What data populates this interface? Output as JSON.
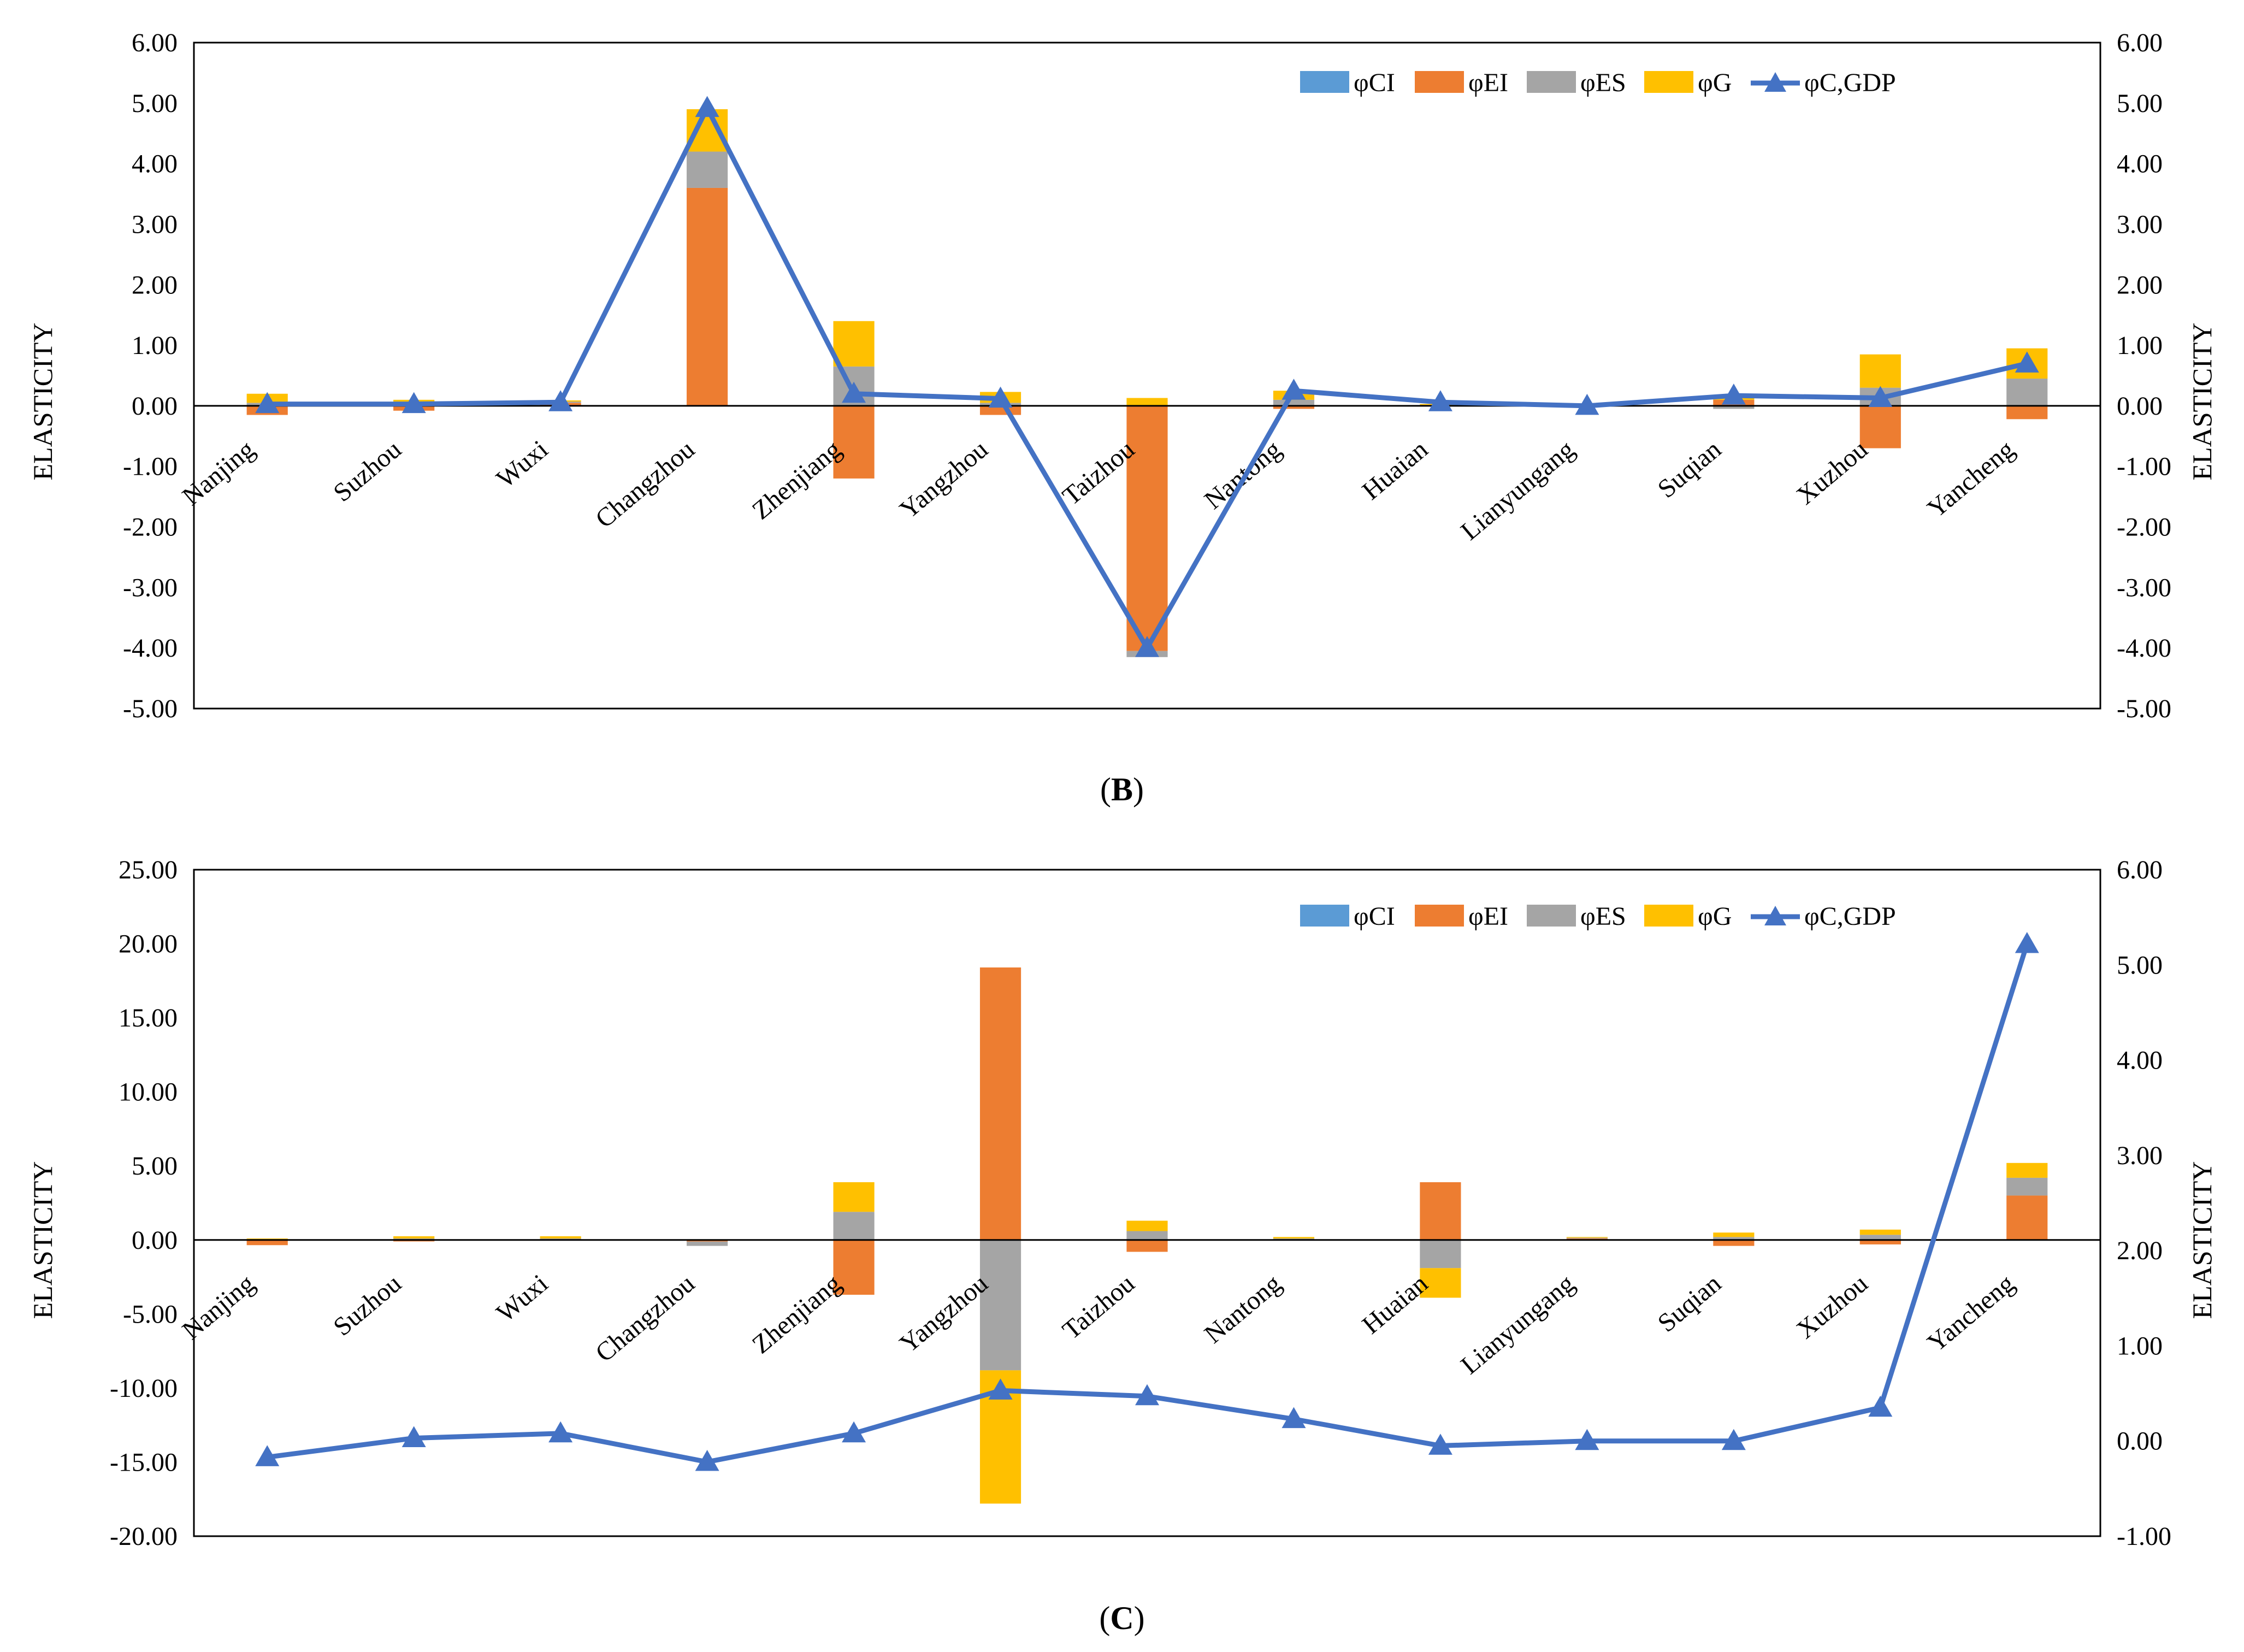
{
  "legend_labels": {
    "ci": "φCI",
    "ei": "φEI",
    "es": "φES",
    "g": "φG",
    "line": "φC,GDP"
  },
  "colors": {
    "ci": "#5B9BD5",
    "ei": "#ED7D31",
    "es": "#A5A5A5",
    "g": "#FFC000",
    "line": "#4472C4"
  },
  "chart_data": [
    {
      "type": "bar",
      "panel_label": "B",
      "stacked": true,
      "title": "",
      "categories": [
        "Nanjing",
        "Suzhou",
        "Wuxi",
        "Changzhou",
        "Zhenjiang",
        "Yangzhou",
        "Taizhou",
        "Nantong",
        "Huaian",
        "Lianyungang",
        "Suqian",
        "Xuzhou",
        "Yancheng"
      ],
      "ylabel": "ELASTICITY",
      "y2label": "ELASTICITY",
      "ylim": [
        -5,
        6
      ],
      "y2lim": [
        -5,
        6
      ],
      "yticks": [
        "6.00",
        "5.00",
        "4.00",
        "3.00",
        "2.00",
        "1.00",
        "0.00",
        "-1.00",
        "-2.00",
        "-3.00",
        "-4.00",
        "-5.00"
      ],
      "y2ticks": [
        "6.00",
        "5.00",
        "4.00",
        "3.00",
        "2.00",
        "1.00",
        "0.00",
        "-1.00",
        "-2.00",
        "-3.00",
        "-4.00",
        "-5.00"
      ],
      "legend_position": "top-right",
      "series": [
        {
          "name": "φCI",
          "key": "ci",
          "values": [
            0,
            0,
            0,
            0,
            0,
            0,
            0,
            0,
            0,
            0,
            0,
            0,
            0
          ]
        },
        {
          "name": "φEI",
          "key": "ei",
          "values": [
            -0.15,
            -0.08,
            0.05,
            3.6,
            -1.2,
            -0.15,
            -4.05,
            -0.05,
            0,
            0,
            0.1,
            -0.7,
            -0.22
          ]
        },
        {
          "name": "φES",
          "key": "es",
          "values": [
            0.05,
            0.05,
            0.02,
            0.6,
            0.65,
            0.05,
            -0.1,
            0.1,
            0,
            0,
            -0.05,
            0.3,
            0.45
          ]
        },
        {
          "name": "φG",
          "key": "g",
          "values": [
            0.15,
            0.05,
            0.02,
            0.7,
            0.75,
            0.18,
            0.13,
            0.15,
            0.03,
            0,
            0.05,
            0.55,
            0.5
          ]
        },
        {
          "name": "φC,GDP",
          "key": "line",
          "type": "line",
          "axis": "right",
          "values": [
            0.03,
            0.03,
            0.06,
            4.92,
            0.2,
            0.12,
            -4.0,
            0.25,
            0.06,
            0,
            0.17,
            0.13,
            0.7
          ]
        }
      ]
    },
    {
      "type": "bar",
      "panel_label": "C",
      "stacked": true,
      "title": "",
      "categories": [
        "Nanjing",
        "Suzhou",
        "Wuxi",
        "Changzhou",
        "Zhenjiang",
        "Yangzhou",
        "Taizhou",
        "Nantong",
        "Huaian",
        "Lianyungang",
        "Suqian",
        "Xuzhou",
        "Yancheng"
      ],
      "ylabel": "ELASTICITY",
      "y2label": "ELASTICITY",
      "ylim": [
        -20,
        25
      ],
      "y2lim": [
        -1,
        6
      ],
      "yticks": [
        "25.00",
        "20.00",
        "15.00",
        "10.00",
        "5.00",
        "0.00",
        "-5.00",
        "-10.00",
        "-15.00",
        "-20.00"
      ],
      "y2ticks": [
        "6.00",
        "5.00",
        "4.00",
        "3.00",
        "2.00",
        "1.00",
        "0.00",
        "-1.00"
      ],
      "legend_position": "top-right",
      "series": [
        {
          "name": "φCI",
          "key": "ci",
          "values": [
            0,
            0,
            0,
            0,
            0,
            0,
            0,
            0,
            0,
            0,
            0,
            0,
            0
          ]
        },
        {
          "name": "φEI",
          "key": "ei",
          "values": [
            -0.35,
            -0.1,
            0.05,
            -0.1,
            -3.7,
            18.4,
            -0.8,
            0.05,
            3.9,
            0.1,
            -0.4,
            -0.3,
            3.0
          ]
        },
        {
          "name": "φES",
          "key": "es",
          "values": [
            0.05,
            0.1,
            0.05,
            -0.3,
            1.9,
            -8.8,
            0.6,
            0.05,
            -1.9,
            0.05,
            0.2,
            0.35,
            1.2
          ]
        },
        {
          "name": "φG",
          "key": "g",
          "values": [
            0.05,
            0.15,
            0.15,
            0.05,
            2.0,
            -9.0,
            0.7,
            0.1,
            -2.0,
            0.05,
            0.3,
            0.35,
            1.0
          ]
        },
        {
          "name": "φC,GDP",
          "key": "line",
          "type": "line",
          "axis": "right",
          "values": [
            -0.17,
            0.03,
            0.08,
            -0.22,
            0.08,
            0.53,
            0.47,
            0.23,
            -0.05,
            0,
            0,
            0.35,
            5.22
          ]
        }
      ]
    }
  ]
}
